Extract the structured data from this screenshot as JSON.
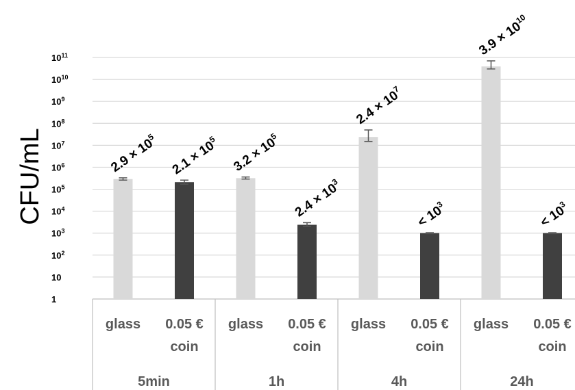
{
  "chart_data": {
    "type": "bar",
    "ylabel": "CFU/mL",
    "yscale": "log",
    "ylim": [
      1,
      100000000000
    ],
    "y_ticks": [
      {
        "base": "1",
        "exp": ""
      },
      {
        "base": "10",
        "exp": ""
      },
      {
        "base": "10",
        "exp": "2"
      },
      {
        "base": "10",
        "exp": "3"
      },
      {
        "base": "10",
        "exp": "4"
      },
      {
        "base": "10",
        "exp": "5"
      },
      {
        "base": "10",
        "exp": "6"
      },
      {
        "base": "10",
        "exp": "7"
      },
      {
        "base": "10",
        "exp": "8"
      },
      {
        "base": "10",
        "exp": "9"
      },
      {
        "base": "10",
        "exp": "10"
      },
      {
        "base": "10",
        "exp": "11"
      }
    ],
    "grid": true,
    "groups": [
      "5min",
      "1h",
      "4h",
      "24h"
    ],
    "categories": [
      {
        "group": "5min",
        "label": [
          "glass"
        ],
        "value": 290000,
        "err_high": 330000,
        "err_low": 260000,
        "color": "#d9d9d9",
        "data_label": {
          "base": "2.9 × 10",
          "exp": "5"
        }
      },
      {
        "group": "5min",
        "label": [
          "0.05 €",
          "coin"
        ],
        "value": 210000,
        "err_high": 260000,
        "err_low": 170000,
        "color": "#404040",
        "data_label": {
          "base": "2.1 × 10",
          "exp": "5"
        }
      },
      {
        "group": "1h",
        "label": [
          "glass"
        ],
        "value": 320000,
        "err_high": 360000,
        "err_low": 290000,
        "color": "#d9d9d9",
        "data_label": {
          "base": "3.2 × 10",
          "exp": "5"
        }
      },
      {
        "group": "1h",
        "label": [
          "0.05 €",
          "coin"
        ],
        "value": 2400,
        "err_high": 3000,
        "err_low": 2000,
        "color": "#404040",
        "data_label": {
          "base": "2.4 × 10",
          "exp": "3"
        }
      },
      {
        "group": "4h",
        "label": [
          "glass"
        ],
        "value": 24000000,
        "err_high": 50000000,
        "err_low": 15000000,
        "color": "#d9d9d9",
        "data_label": {
          "base": "2.4 × 10",
          "exp": "7"
        }
      },
      {
        "group": "4h",
        "label": [
          "0.05 €",
          "coin"
        ],
        "value": 1000,
        "err_high": 1050,
        "err_low": 950,
        "color": "#404040",
        "data_label": {
          "base": "< 10",
          "exp": "3"
        }
      },
      {
        "group": "24h",
        "label": [
          "glass"
        ],
        "value": 39000000000,
        "err_high": 70000000000,
        "err_low": 30000000000,
        "color": "#d9d9d9",
        "data_label": {
          "base": "3.9 × 10",
          "exp": "10"
        }
      },
      {
        "group": "24h",
        "label": [
          "0.05 €",
          "coin"
        ],
        "value": 1000,
        "err_high": 1050,
        "err_low": 950,
        "color": "#404040",
        "data_label": {
          "base": "< 10",
          "exp": "3"
        }
      }
    ]
  }
}
